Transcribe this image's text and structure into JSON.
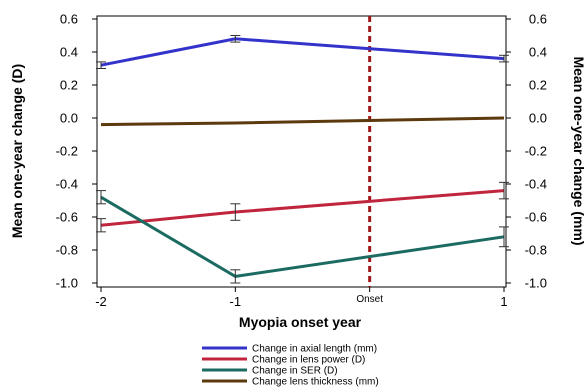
{
  "chart_data": {
    "type": "line",
    "x_ticks": [
      {
        "value": -2,
        "label": "-2"
      },
      {
        "value": -1,
        "label": "-1"
      },
      {
        "value": 0,
        "label": "Onset"
      },
      {
        "value": 1,
        "label": "1"
      }
    ],
    "xlabel": "Myopia onset year",
    "ylabel_left": "Mean one-year change (D)",
    "ylabel_right": "Mean one-year change (mm)",
    "xlim": [
      -2,
      1
    ],
    "ylim": [
      -1.0,
      0.6
    ],
    "y_ticks": [
      {
        "value": 0.6,
        "label": "0.6"
      },
      {
        "value": 0.4,
        "label": "0.4"
      },
      {
        "value": 0.2,
        "label": "0.2"
      },
      {
        "value": 0.0,
        "label": "0.0"
      },
      {
        "value": -0.2,
        "label": "-0.2"
      },
      {
        "value": -0.4,
        "label": "-0.4"
      },
      {
        "value": -0.6,
        "label": "-0.6"
      },
      {
        "value": -0.8,
        "label": "-0.8"
      },
      {
        "value": -1.0,
        "label": "-1.0"
      }
    ],
    "onset_line": {
      "x": 0,
      "color": "#a01818"
    },
    "series": [
      {
        "name": "Change in axial length (mm)",
        "color": "#3333cc",
        "x": [
          -2,
          -1,
          1
        ],
        "y": [
          0.32,
          0.48,
          0.36
        ],
        "err": [
          0.02,
          0.02,
          0.02
        ]
      },
      {
        "name": "Change in lens power (D)",
        "color": "#c0253d",
        "x": [
          -2,
          -1,
          1
        ],
        "y": [
          -0.65,
          -0.57,
          -0.44
        ],
        "err": [
          0.04,
          0.05,
          0.05
        ]
      },
      {
        "name": "Change in SER (D)",
        "color": "#1b6b62",
        "x": [
          -2,
          -1,
          1
        ],
        "y": [
          -0.48,
          -0.96,
          -0.72
        ],
        "err": [
          0.04,
          0.04,
          0.06
        ]
      },
      {
        "name": "Change lens thickness (mm)",
        "color": "#5c3a0e",
        "x": [
          -2,
          -1,
          1
        ],
        "y": [
          -0.04,
          -0.03,
          0.0
        ],
        "err": [
          0.0,
          0.0,
          0.0
        ]
      }
    ],
    "grid": false,
    "legend_position": "bottom"
  }
}
